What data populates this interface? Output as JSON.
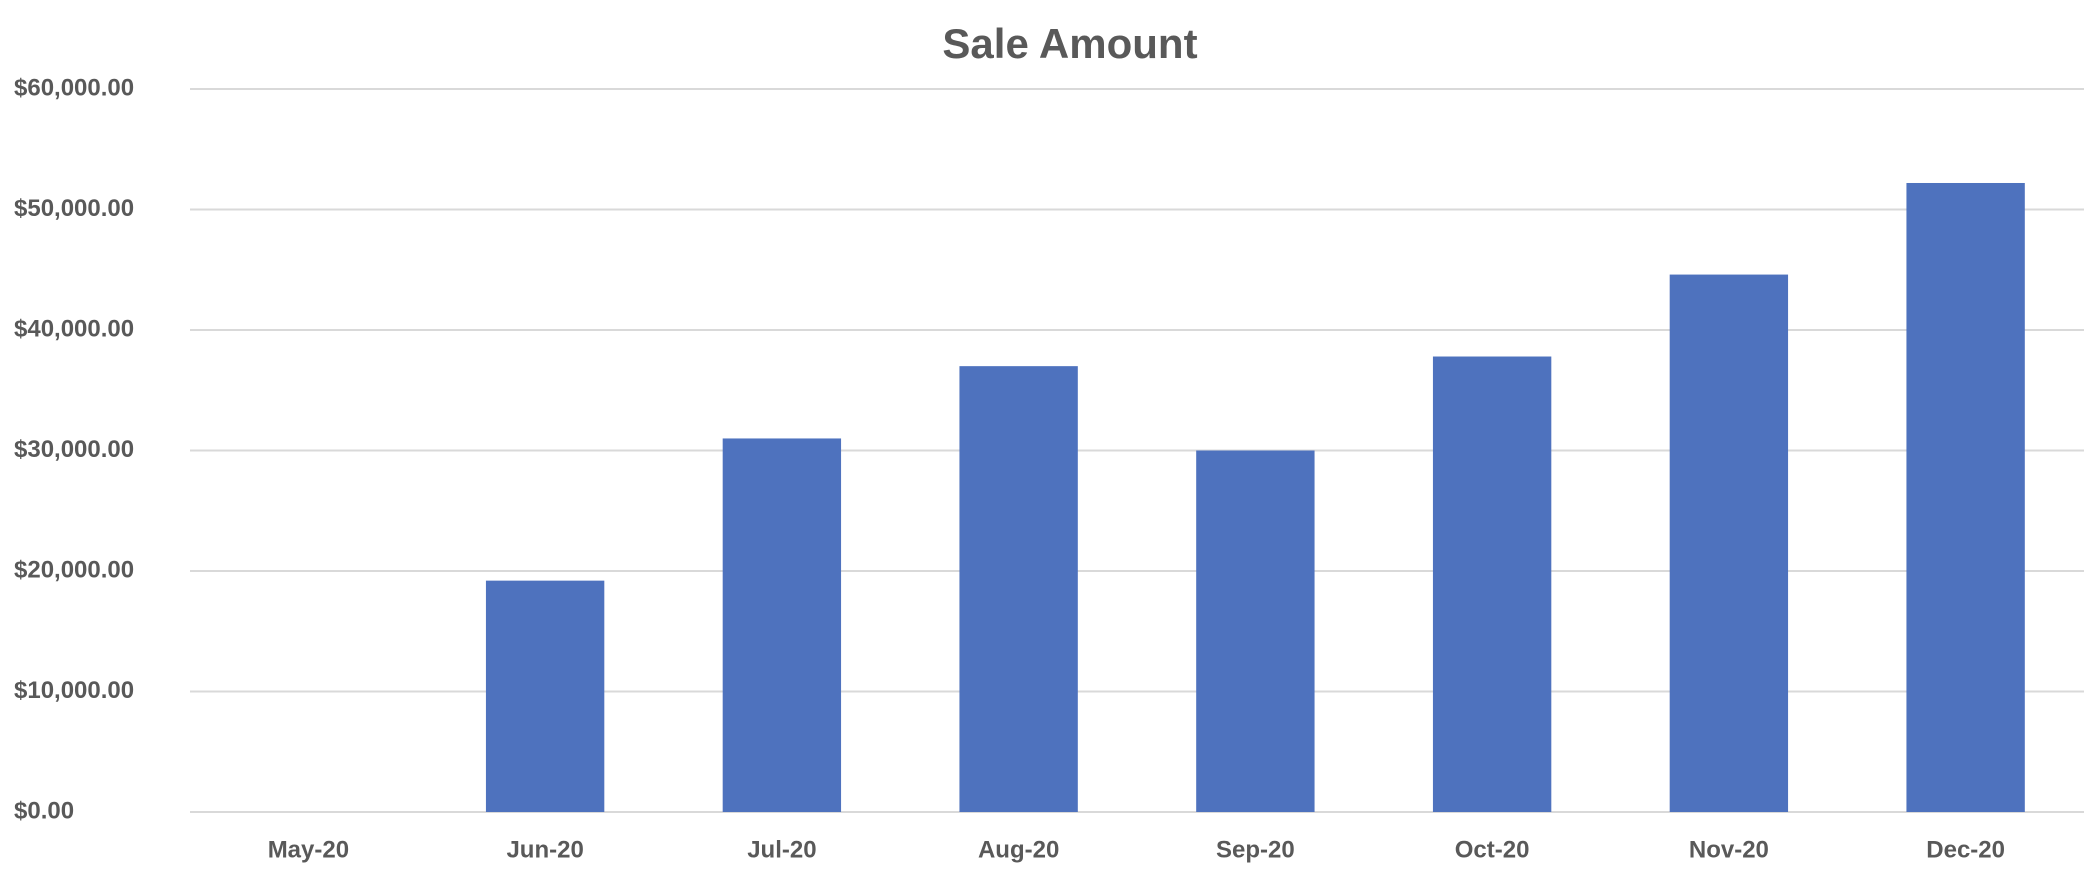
{
  "chart_data": {
    "type": "bar",
    "title": "Sale Amount",
    "categories": [
      "May-20",
      "Jun-20",
      "Jul-20",
      "Aug-20",
      "Sep-20",
      "Oct-20",
      "Nov-20",
      "Dec-20"
    ],
    "values": [
      0,
      19200,
      31000,
      37000,
      30000,
      37800,
      44600,
      52200
    ],
    "color": "#4e72be",
    "ylim": [
      0,
      60000
    ],
    "yticks": [
      {
        "value": 0,
        "label": "$0.00"
      },
      {
        "value": 10000,
        "label": "$10,000.00"
      },
      {
        "value": 20000,
        "label": "$20,000.00"
      },
      {
        "value": 30000,
        "label": "$30,000.00"
      },
      {
        "value": 40000,
        "label": "$40,000.00"
      },
      {
        "value": 50000,
        "label": "$50,000.00"
      },
      {
        "value": 60000,
        "label": "$60,000.00"
      }
    ],
    "grid": true
  }
}
